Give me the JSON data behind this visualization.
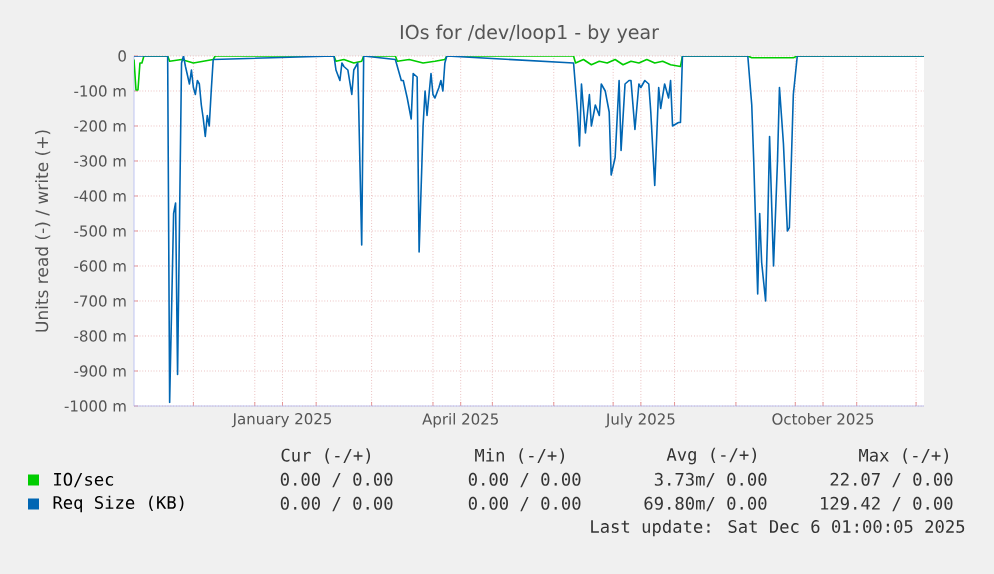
{
  "chart_data": {
    "type": "line",
    "title": "IOs for /dev/loop1 - by year",
    "ylabel": "Units read (-) / write (+)",
    "xlim": [
      "2024-11-01",
      "2025-12-05"
    ],
    "xticks": [
      {
        "value": "2024-12-01",
        "label": null
      },
      {
        "value": "2025-01-01",
        "label": null
      },
      {
        "value": "2025-01-15",
        "label": "January 2025"
      },
      {
        "value": "2025-02-01",
        "label": null
      },
      {
        "value": "2025-03-01",
        "label": null
      },
      {
        "value": "2025-04-01",
        "label": null
      },
      {
        "value": "2025-04-15",
        "label": "April 2025"
      },
      {
        "value": "2025-05-01",
        "label": null
      },
      {
        "value": "2025-06-01",
        "label": null
      },
      {
        "value": "2025-07-01",
        "label": null
      },
      {
        "value": "2025-07-15",
        "label": "July 2025"
      },
      {
        "value": "2025-08-01",
        "label": null
      },
      {
        "value": "2025-09-01",
        "label": null
      },
      {
        "value": "2025-10-01",
        "label": null
      },
      {
        "value": "2025-10-15",
        "label": "October 2025"
      },
      {
        "value": "2025-11-01",
        "label": null
      },
      {
        "value": "2025-12-01",
        "label": null
      }
    ],
    "ylim": [
      -1000,
      0
    ],
    "yticks": [
      {
        "value": -1000,
        "label": "-1000 m"
      },
      {
        "value": -900,
        "label": "-900 m"
      },
      {
        "value": -800,
        "label": "-800 m"
      },
      {
        "value": -700,
        "label": "-700 m"
      },
      {
        "value": -600,
        "label": "-600 m"
      },
      {
        "value": -500,
        "label": "-500 m"
      },
      {
        "value": -400,
        "label": "-400 m"
      },
      {
        "value": -300,
        "label": "-300 m"
      },
      {
        "value": -200,
        "label": "-200 m"
      },
      {
        "value": -100,
        "label": "-100 m"
      },
      0
    ],
    "grid": true,
    "legend": "bottom",
    "series": [
      {
        "name": "IO/sec",
        "color": "#00cc00",
        "x": [
          "2024-11-01",
          "2024-11-02",
          "2024-11-03",
          "2024-11-04",
          "2024-11-05",
          "2024-11-06",
          "2024-11-18",
          "2024-11-19",
          "2024-11-25",
          "2024-12-01",
          "2024-12-06",
          "2024-12-11",
          "2024-12-12",
          "2025-02-10",
          "2025-02-11",
          "2025-02-15",
          "2025-02-20",
          "2025-02-24",
          "2025-02-25",
          "2025-03-13",
          "2025-03-14",
          "2025-03-20",
          "2025-03-27",
          "2025-04-02",
          "2025-04-07",
          "2025-04-08",
          "2025-06-11",
          "2025-06-12",
          "2025-06-16",
          "2025-06-20",
          "2025-06-24",
          "2025-06-28",
          "2025-07-02",
          "2025-07-06",
          "2025-07-10",
          "2025-07-14",
          "2025-07-18",
          "2025-07-22",
          "2025-07-26",
          "2025-07-30",
          "2025-08-04",
          "2025-08-05",
          "2025-09-07",
          "2025-09-09",
          "2025-09-30",
          "2025-10-02",
          "2025-12-05"
        ],
        "values": [
          -10,
          -97,
          -97,
          -20,
          -20,
          0,
          0,
          -15,
          -10,
          -20,
          -15,
          -10,
          0,
          0,
          -15,
          -10,
          -20,
          -15,
          0,
          0,
          -15,
          -10,
          -20,
          -15,
          -10,
          0,
          0,
          -20,
          -10,
          -25,
          -15,
          -20,
          -10,
          -25,
          -15,
          -20,
          -10,
          -20,
          -15,
          -25,
          -30,
          0,
          0,
          -5,
          -5,
          0,
          0
        ]
      },
      {
        "name": "Req Size (KB)",
        "color": "#0066b3",
        "x": [
          "2024-11-01",
          "2024-11-18",
          "2024-11-19",
          "2024-11-21",
          "2024-11-22",
          "2024-11-23",
          "2024-11-25",
          "2024-11-26",
          "2024-11-27",
          "2024-11-29",
          "2024-11-30",
          "2024-12-01",
          "2024-12-02",
          "2024-12-03",
          "2024-12-04",
          "2024-12-05",
          "2024-12-06",
          "2024-12-07",
          "2024-12-08",
          "2024-12-09",
          "2024-12-10",
          "2024-12-11",
          "2025-02-10",
          "2025-02-11",
          "2025-02-13",
          "2025-02-14",
          "2025-02-15",
          "2025-02-17",
          "2025-02-19",
          "2025-02-20",
          "2025-02-22",
          "2025-02-24",
          "2025-02-25",
          "2025-03-13",
          "2025-03-16",
          "2025-03-17",
          "2025-03-19",
          "2025-03-21",
          "2025-03-22",
          "2025-03-24",
          "2025-03-25",
          "2025-03-27",
          "2025-03-28",
          "2025-03-29",
          "2025-03-31",
          "2025-04-01",
          "2025-04-02",
          "2025-04-04",
          "2025-04-05",
          "2025-04-06",
          "2025-04-07",
          "2025-04-08",
          "2025-06-11",
          "2025-06-13",
          "2025-06-14",
          "2025-06-15",
          "2025-06-17",
          "2025-06-19",
          "2025-06-20",
          "2025-06-22",
          "2025-06-24",
          "2025-06-25",
          "2025-06-27",
          "2025-06-29",
          "2025-06-30",
          "2025-07-02",
          "2025-07-04",
          "2025-07-05",
          "2025-07-07",
          "2025-07-09",
          "2025-07-10",
          "2025-07-12",
          "2025-07-14",
          "2025-07-15",
          "2025-07-17",
          "2025-07-19",
          "2025-07-20",
          "2025-07-22",
          "2025-07-24",
          "2025-07-25",
          "2025-07-27",
          "2025-07-29",
          "2025-07-30",
          "2025-07-31",
          "2025-08-03",
          "2025-08-04",
          "2025-08-05",
          "2025-09-07",
          "2025-09-09",
          "2025-09-10",
          "2025-09-12",
          "2025-09-13",
          "2025-09-14",
          "2025-09-16",
          "2025-09-17",
          "2025-09-18",
          "2025-09-20",
          "2025-09-22",
          "2025-09-23",
          "2025-09-25",
          "2025-09-27",
          "2025-09-28",
          "2025-09-30",
          "2025-10-02",
          "2025-12-05"
        ],
        "values": [
          0,
          0,
          -990,
          -450,
          -420,
          -910,
          -20,
          0,
          -30,
          -80,
          -40,
          -90,
          -110,
          -70,
          -80,
          -140,
          -180,
          -230,
          -170,
          -200,
          -100,
          -10,
          0,
          -40,
          -70,
          -20,
          -30,
          -40,
          -110,
          -40,
          -20,
          -540,
          0,
          -10,
          -70,
          -70,
          -120,
          -180,
          -50,
          -60,
          -560,
          -200,
          -100,
          -170,
          -50,
          -110,
          -120,
          -90,
          -70,
          -100,
          -20,
          0,
          -20,
          -160,
          -257,
          -80,
          -220,
          -110,
          -200,
          -140,
          -170,
          -80,
          -100,
          -160,
          -340,
          -290,
          -70,
          -270,
          -80,
          -70,
          -70,
          -210,
          -80,
          -90,
          -70,
          -80,
          -160,
          -370,
          -90,
          -150,
          -80,
          -120,
          -70,
          -200,
          -190,
          -190,
          0,
          0,
          -140,
          -300,
          -680,
          -450,
          -590,
          -700,
          -500,
          -230,
          -600,
          -300,
          -90,
          -250,
          -500,
          -490,
          -110,
          0,
          0
        ]
      }
    ],
    "annotations": [
      "Cur (-/+)",
      "Min (-/+)",
      "Avg (-/+)",
      "Max (-/+)",
      "0.00 / 0.00",
      "0.00 / 0.00",
      "3.73m/ 0.00",
      "22.07 / 0.00",
      "0.00 / 0.00",
      "0.00 / 0.00",
      "69.80m/ 0.00",
      "129.42 / 0.00",
      "Last update: Sat Dec  6 01:00:05 2025"
    ]
  }
}
